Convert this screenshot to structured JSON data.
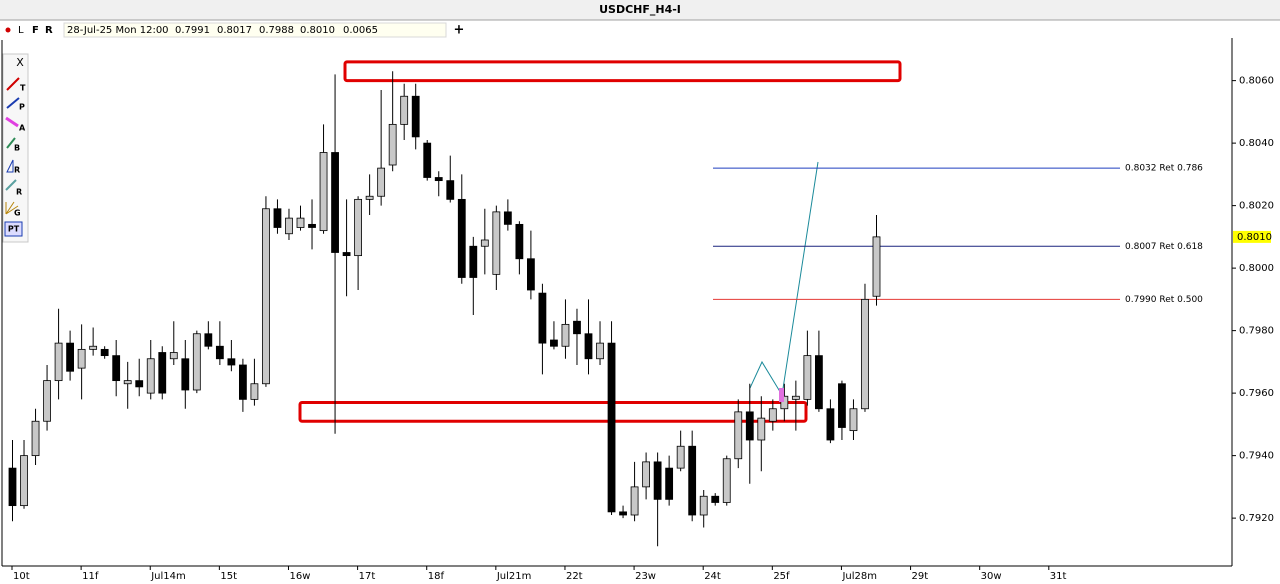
{
  "chart_data": {
    "type": "candlestick",
    "title": "USDCHF_H4-I",
    "info": {
      "time": "28-Jul-25 Mon 12:00",
      "open": "0.7991",
      "high": "0.8017",
      "low": "0.7988",
      "close": "0.8010",
      "change": "0.0065"
    },
    "toolbar": {
      "buttons": [
        "L",
        "F",
        "R"
      ],
      "close": "X",
      "tools": [
        "T",
        "P",
        "A",
        "B",
        "R",
        "R",
        "G",
        "PT"
      ]
    },
    "x_labels": [
      "10t",
      "11f",
      "Jul14m",
      "15t",
      "16w",
      "17t",
      "18f",
      "Jul21m",
      "22t",
      "23w",
      "24t",
      "25f",
      "Jul28m",
      "29t",
      "30w",
      "31t"
    ],
    "candles": [
      [
        0.7936,
        0.7945,
        0.7919,
        0.7924
      ],
      [
        0.7924,
        0.7945,
        0.7923,
        0.794
      ],
      [
        0.794,
        0.7955,
        0.7937,
        0.7951
      ],
      [
        0.7951,
        0.7969,
        0.7948,
        0.7964
      ],
      [
        0.7964,
        0.7987,
        0.7958,
        0.7976
      ],
      [
        0.7976,
        0.798,
        0.7964,
        0.7967
      ],
      [
        0.7968,
        0.7982,
        0.7958,
        0.7974
      ],
      [
        0.7974,
        0.7981,
        0.7972,
        0.7975
      ],
      [
        0.7974,
        0.7975,
        0.7971,
        0.7972
      ],
      [
        0.7972,
        0.7977,
        0.7959,
        0.7964
      ],
      [
        0.7963,
        0.797,
        0.7955,
        0.7964
      ],
      [
        0.7964,
        0.7971,
        0.7959,
        0.7962
      ],
      [
        0.796,
        0.7977,
        0.7958,
        0.7971
      ],
      [
        0.7973,
        0.7975,
        0.7958,
        0.796
      ],
      [
        0.7971,
        0.7983,
        0.7969,
        0.7973
      ],
      [
        0.7971,
        0.7977,
        0.7955,
        0.7961
      ],
      [
        0.7961,
        0.798,
        0.796,
        0.7979
      ],
      [
        0.7979,
        0.7983,
        0.7974,
        0.7975
      ],
      [
        0.7975,
        0.7983,
        0.7969,
        0.7971
      ],
      [
        0.7971,
        0.7977,
        0.7967,
        0.7969
      ],
      [
        0.7969,
        0.7971,
        0.7954,
        0.7958
      ],
      [
        0.7958,
        0.7971,
        0.7956,
        0.7963
      ],
      [
        0.7963,
        0.8023,
        0.7962,
        0.8019
      ],
      [
        0.8019,
        0.8022,
        0.8011,
        0.8013
      ],
      [
        0.8011,
        0.8019,
        0.8009,
        0.8016
      ],
      [
        0.8013,
        0.802,
        0.8012,
        0.8016
      ],
      [
        0.8014,
        0.8022,
        0.8006,
        0.8013
      ],
      [
        0.8012,
        0.8046,
        0.8011,
        0.8037
      ],
      [
        0.8037,
        0.8062,
        0.7947,
        0.8005
      ],
      [
        0.8005,
        0.8022,
        0.7991,
        0.8004
      ],
      [
        0.8004,
        0.8023,
        0.7993,
        0.8022
      ],
      [
        0.8022,
        0.803,
        0.8017,
        0.8023
      ],
      [
        0.8023,
        0.8057,
        0.802,
        0.8032
      ],
      [
        0.8033,
        0.8063,
        0.8031,
        0.8046
      ],
      [
        0.8046,
        0.8059,
        0.8041,
        0.8055
      ],
      [
        0.8055,
        0.8059,
        0.8038,
        0.8042
      ],
      [
        0.804,
        0.8041,
        0.8028,
        0.8029
      ],
      [
        0.8029,
        0.8031,
        0.8023,
        0.8028
      ],
      [
        0.8028,
        0.8036,
        0.8021,
        0.8022
      ],
      [
        0.8022,
        0.803,
        0.7995,
        0.7997
      ],
      [
        0.8007,
        0.801,
        0.7985,
        0.7997
      ],
      [
        0.8007,
        0.8019,
        0.7998,
        0.8009
      ],
      [
        0.7998,
        0.802,
        0.7993,
        0.8018
      ],
      [
        0.8018,
        0.8022,
        0.8012,
        0.8014
      ],
      [
        0.8014,
        0.8015,
        0.7998,
        0.8003
      ],
      [
        0.8003,
        0.8012,
        0.799,
        0.7993
      ],
      [
        0.7992,
        0.7995,
        0.7966,
        0.7976
      ],
      [
        0.7977,
        0.7983,
        0.7974,
        0.7975
      ],
      [
        0.7975,
        0.799,
        0.7971,
        0.7982
      ],
      [
        0.7983,
        0.7987,
        0.7969,
        0.7979
      ],
      [
        0.7979,
        0.799,
        0.7966,
        0.7971
      ],
      [
        0.7971,
        0.7983,
        0.7969,
        0.7976
      ],
      [
        0.7976,
        0.7983,
        0.7921,
        0.7922
      ],
      [
        0.7922,
        0.7924,
        0.792,
        0.7921
      ],
      [
        0.7921,
        0.7938,
        0.7919,
        0.793
      ],
      [
        0.793,
        0.7941,
        0.7926,
        0.7938
      ],
      [
        0.7938,
        0.7941,
        0.7911,
        0.7926
      ],
      [
        0.7936,
        0.794,
        0.7924,
        0.7926
      ],
      [
        0.7936,
        0.7948,
        0.7935,
        0.7943
      ],
      [
        0.7943,
        0.7948,
        0.7919,
        0.7921
      ],
      [
        0.7921,
        0.7929,
        0.7917,
        0.7927
      ],
      [
        0.7927,
        0.7928,
        0.7924,
        0.7925
      ],
      [
        0.7925,
        0.794,
        0.7924,
        0.7939
      ],
      [
        0.7939,
        0.7958,
        0.7936,
        0.7954
      ],
      [
        0.7954,
        0.7963,
        0.7931,
        0.7945
      ],
      [
        0.7945,
        0.7959,
        0.7935,
        0.7952
      ],
      [
        0.7951,
        0.7958,
        0.7948,
        0.7955
      ],
      [
        0.7955,
        0.7963,
        0.7951,
        0.7959
      ],
      [
        0.7958,
        0.7964,
        0.7948,
        0.7959
      ],
      [
        0.7958,
        0.798,
        0.7956,
        0.7972
      ],
      [
        0.7972,
        0.798,
        0.7954,
        0.7955
      ],
      [
        0.7955,
        0.7958,
        0.7944,
        0.7945
      ],
      [
        0.7963,
        0.7964,
        0.7945,
        0.7949
      ],
      [
        0.7948,
        0.7958,
        0.7945,
        0.7955
      ],
      [
        0.7955,
        0.7995,
        0.7954,
        0.799
      ],
      [
        0.7991,
        0.8017,
        0.7988,
        0.801
      ]
    ],
    "bull_color": "#c8c8c8",
    "bear_color": "#000000",
    "ylim": [
      0.7905,
      0.8073
    ],
    "yticks": [
      {
        "value": 0.792,
        "label": "0.7920"
      },
      {
        "value": 0.794,
        "label": "0.7940"
      },
      {
        "value": 0.796,
        "label": "0.7960"
      },
      {
        "value": 0.798,
        "label": "0.7980"
      },
      {
        "value": 0.8,
        "label": "0.8000"
      },
      {
        "value": 0.802,
        "label": "0.8020"
      },
      {
        "value": 0.804,
        "label": "0.8040"
      },
      {
        "value": 0.806,
        "label": "0.8060"
      }
    ],
    "current_price": {
      "value": 0.801,
      "label": "0.8010",
      "color": "#ffff00"
    },
    "fib_levels": [
      {
        "value": 0.8032,
        "label": "0.8032 Ret 0.786",
        "color": "#1f3fbf"
      },
      {
        "value": 0.8007,
        "label": "0.8007 Ret 0.618",
        "color": "#1a237e"
      },
      {
        "value": 0.799,
        "label": "0.7990 Ret 0.500",
        "color": "#e53935"
      }
    ],
    "zones": [
      {
        "ylim": [
          0.806,
          0.8066
        ],
        "color": "#e00000"
      },
      {
        "ylim": [
          0.7951,
          0.7957
        ],
        "color": "#e00000"
      }
    ]
  }
}
